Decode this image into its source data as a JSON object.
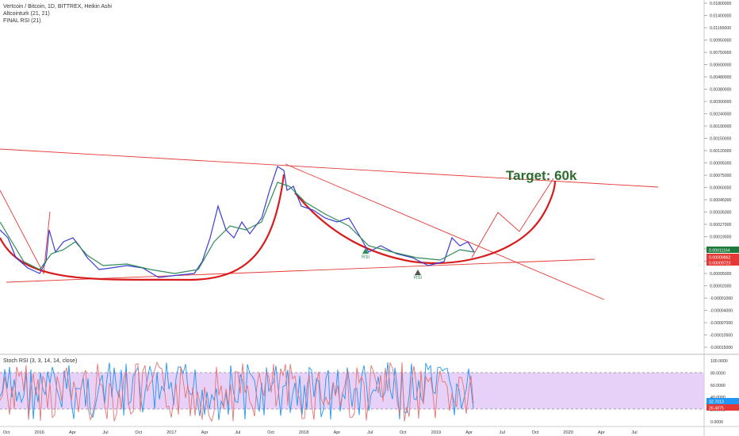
{
  "header": {
    "title": "Vertcoin / Bitcoin, 1D, BITTREX, Heikin Ashi",
    "indicator1": "Altcointurk (21, 21)",
    "indicator2": "FINAL RSI (21)"
  },
  "annotations": {
    "target_text": "Target: 60k",
    "rsi_marker_1": "RSI",
    "rsi_marker_2": "RSI"
  },
  "chart_data": [
    {
      "type": "line",
      "title": "Vertcoin / Bitcoin, 1D, BITTREX, Heikin Ashi",
      "price_scale_labels": [
        "0.01800000",
        "0.01400000",
        "0.01150000",
        "0.00950000",
        "0.00750000",
        "0.00600000",
        "0.00480000",
        "0.00380000",
        "0.00300000",
        "0.00240000",
        "0.00190000",
        "0.00150000",
        "0.00120000",
        "0.00095000",
        "0.00075000",
        "0.00060000",
        "0.00045000",
        "0.00035000",
        "0.00027000",
        "0.00019000",
        "0.00013000",
        "0.00008000",
        "0.00005000",
        "0.00002000",
        "-0.00001000",
        "-0.00004000",
        "-0.00007000",
        "-0.00010500",
        "-0.00015000"
      ],
      "price_tags": [
        {
          "label": "0.00011164",
          "color": "#1e7a3c"
        },
        {
          "label": "0.00009862",
          "color": "#e53935"
        },
        {
          "label": "0.00009723",
          "color": "#e53935"
        }
      ],
      "x_tick_labels": [
        "Oct",
        "2016",
        "Apr",
        "Jul",
        "Oct",
        "2017",
        "Apr",
        "Jul",
        "Oct",
        "2018",
        "Apr",
        "Jul",
        "Oct",
        "2019",
        "Apr",
        "Jul",
        "Oct",
        "2020",
        "Apr",
        "Jul"
      ],
      "colors": {
        "price": "#3b3bd6",
        "ma": "#2e8b57",
        "drawing": "#e53935",
        "target": "#2e6b2e",
        "rsi_band": "#e3c9f7"
      }
    },
    {
      "type": "line",
      "title": "Stoch RSI (3, 3, 14, 14, close)",
      "y_tick_labels": [
        "100.0000",
        "80.0000",
        "60.0000",
        "40.0000",
        "20.0000",
        "0.0000"
      ],
      "band": [
        20,
        80
      ],
      "value_tags": [
        {
          "label": "32.7013",
          "color": "#2196f3"
        },
        {
          "label": "26.4875",
          "color": "#e53935"
        }
      ],
      "series": [
        {
          "name": "K",
          "color": "#2196f3"
        },
        {
          "name": "D",
          "color": "#e57373"
        }
      ]
    }
  ]
}
